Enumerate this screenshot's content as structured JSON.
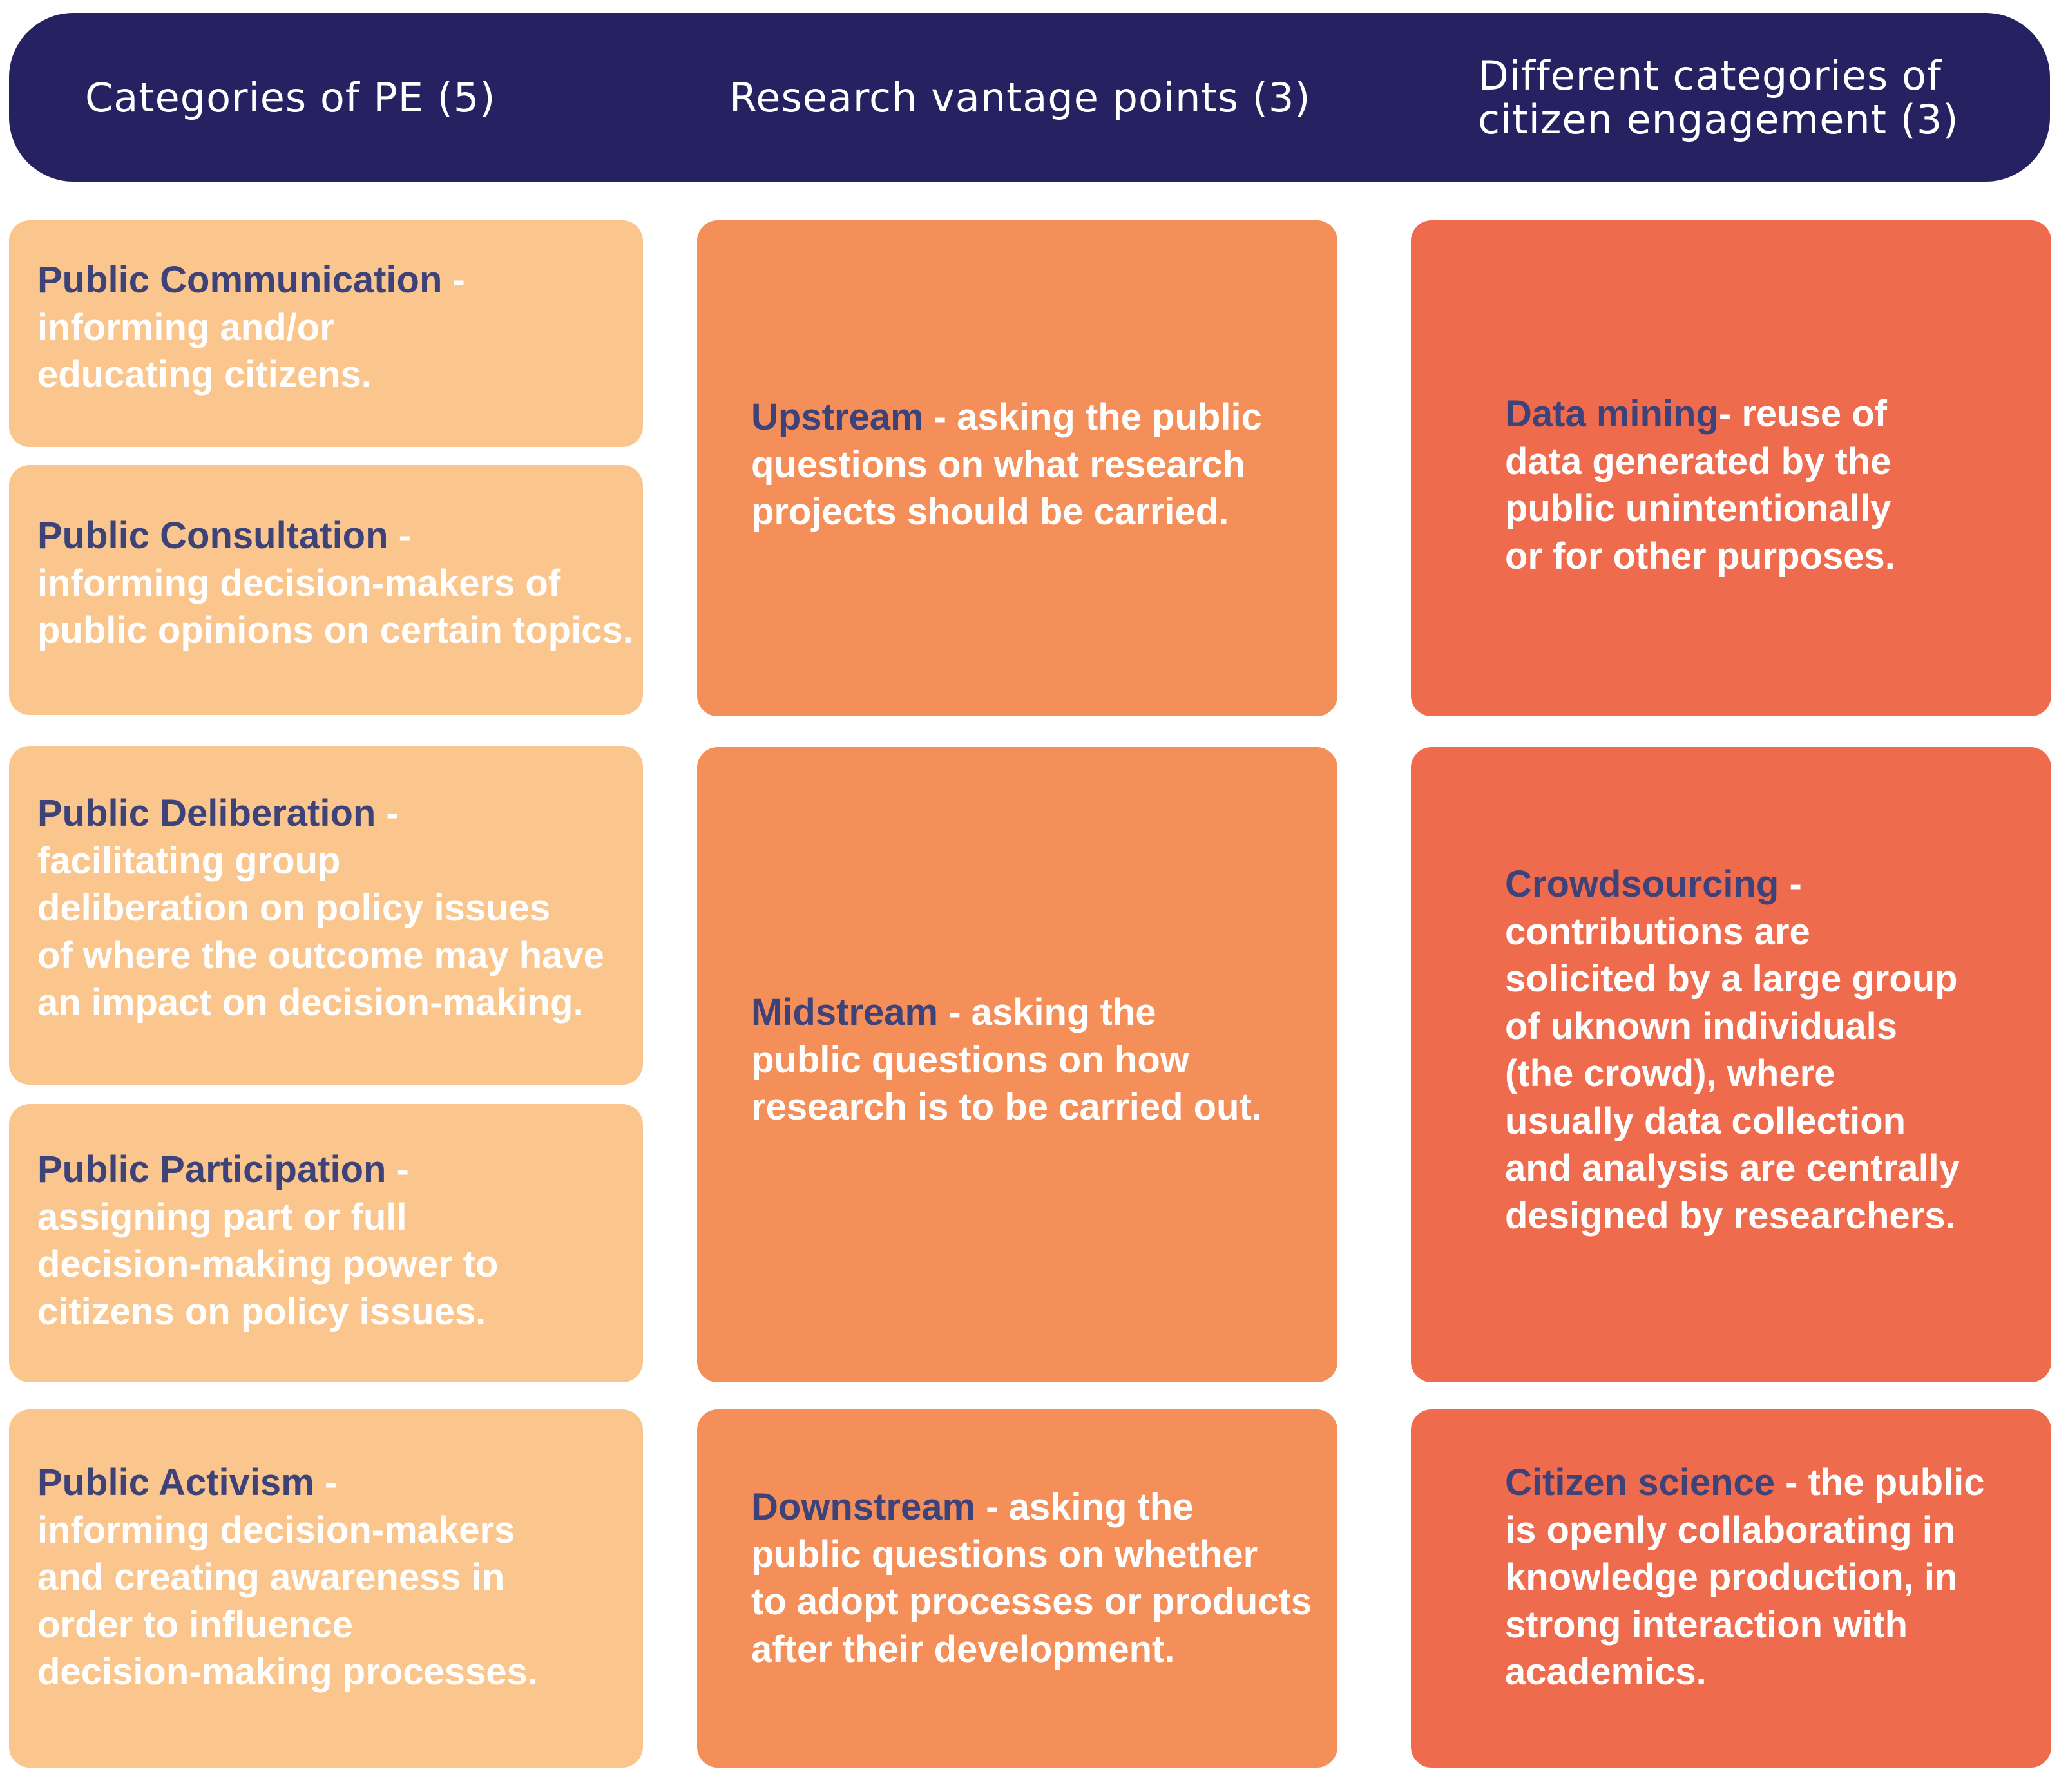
{
  "header": {
    "col1": "Categories of PE (5)",
    "col2": "Research vantage points (3)",
    "col3": "Different categories of\ncitizen engagement (3)"
  },
  "col1": [
    {
      "term": "Public Communication",
      "text": " -\ninforming and/or\neducating citizens."
    },
    {
      "term": "Public Consultation",
      "text": " -\ninforming decision-makers of\npublic opinions on certain topics."
    },
    {
      "term": "Public Deliberation",
      "text": " -\nfacilitating group\ndeliberation on policy issues\nof where the outcome may have\nan impact on decision-making."
    },
    {
      "term": "Public Participation",
      "text": " -\nassigning part or full\ndecision-making power to\ncitizens on policy issues."
    },
    {
      "term": "Public Activism",
      "text": " -\ninforming decision-makers\nand creating awareness in\norder to influence\ndecision-making processes."
    }
  ],
  "col2": [
    {
      "term": "Upstream",
      "text": " - asking the public\nquestions on what research\nprojects should be carried."
    },
    {
      "term": "Midstream",
      "text": " - asking the\npublic questions on how\nresearch is to be carried out."
    },
    {
      "term": "Downstream",
      "text": " - asking the\npublic questions on whether\nto adopt processes or products\nafter their development."
    }
  ],
  "col3": [
    {
      "term": "Data mining",
      "text": "- reuse of\ndata generated by the\npublic unintentionally\nor for other purposes."
    },
    {
      "term": " Crowdsourcing",
      "text": " -\ncontributions are\nsolicited by a large group\nof uknown individuals\n(the crowd), where\nusually data collection\nand analysis are centrally\ndesigned by researchers."
    },
    {
      "term": " Citizen science",
      "text": " - the public\nis openly collaborating in\nknowledge production, in\nstrong interaction with\nacademics."
    }
  ],
  "colors": {
    "header": "#262261",
    "col1": "#FBC68E",
    "col2": "#F48F5A",
    "col3": "#EF6B4E",
    "term": "#3D4278"
  }
}
